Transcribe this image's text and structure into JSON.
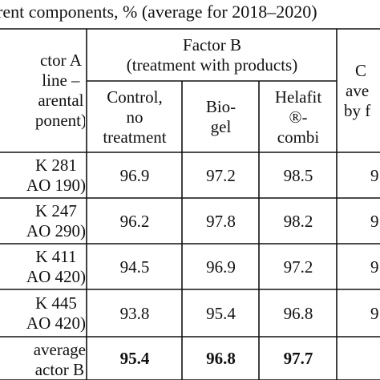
{
  "caption": "rent components, % (average for 2018–2020)",
  "header": {
    "factor_a": [
      "ctor A",
      "line –",
      "arental",
      "ponent)"
    ],
    "factor_b": [
      "Factor B",
      "(treatment with products)"
    ],
    "sub": {
      "control": [
        "Control,",
        "no",
        "treatment"
      ],
      "biogel": [
        "Bio-",
        "gel"
      ],
      "helafit": [
        "Helafit",
        "®-",
        "combi"
      ]
    },
    "right": [
      "C",
      "ave",
      "by f"
    ]
  },
  "rows": [
    {
      "name": [
        "K 281",
        "AO 190)"
      ],
      "control": "96.9",
      "biogel": "97.2",
      "helafit": "98.5",
      "right": "9"
    },
    {
      "name": [
        "K 247",
        "AO 290)"
      ],
      "control": "96.2",
      "biogel": "97.8",
      "helafit": "98.2",
      "right": "9"
    },
    {
      "name": [
        "K 411",
        "AO 420)"
      ],
      "control": "94.5",
      "biogel": "96.9",
      "helafit": "97.2",
      "right": "9"
    },
    {
      "name": [
        "K 445",
        "AO 420)"
      ],
      "control": "93.8",
      "biogel": "95.4",
      "helafit": "96.8",
      "right": "9"
    }
  ],
  "average_row": {
    "name": [
      "average",
      "actor B"
    ],
    "control": "95.4",
    "biogel": "96.8",
    "helafit": "97.7"
  }
}
